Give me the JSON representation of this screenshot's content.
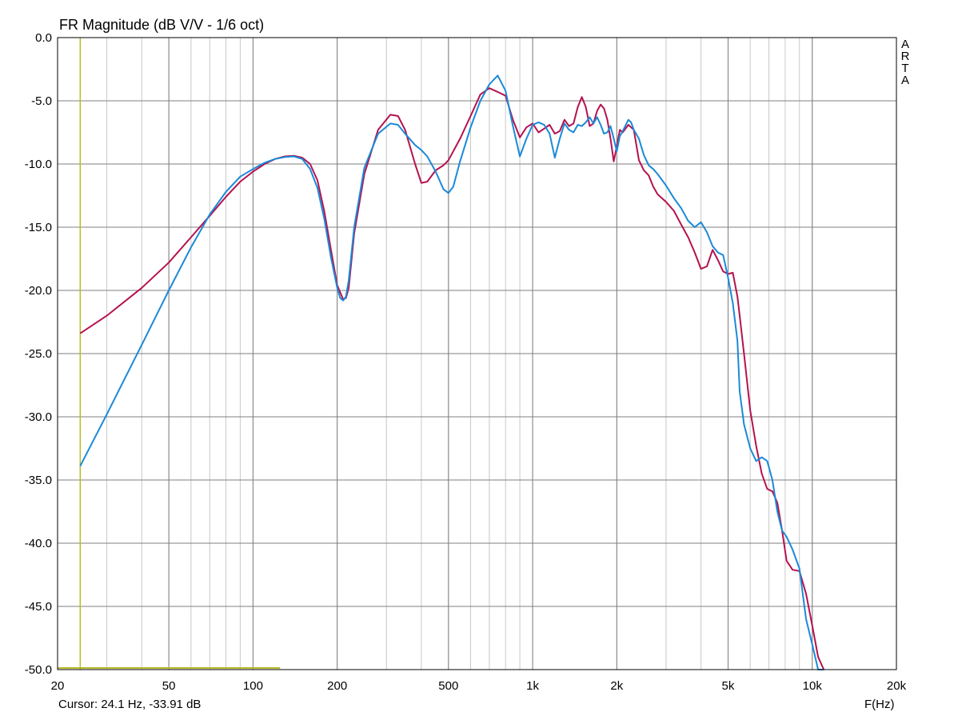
{
  "chart_data": {
    "type": "line",
    "title": "FR Magnitude (dB V/V - 1/6 oct)",
    "xlabel": "F(Hz)",
    "ylabel": "",
    "x_scale": "log",
    "xlim": [
      20,
      20000
    ],
    "ylim": [
      -50,
      0
    ],
    "grid": true,
    "x_ticks": [
      {
        "value": 20,
        "label": "20"
      },
      {
        "value": 50,
        "label": "50"
      },
      {
        "value": 100,
        "label": "100"
      },
      {
        "value": 200,
        "label": "200"
      },
      {
        "value": 500,
        "label": "500"
      },
      {
        "value": 1000,
        "label": "1k"
      },
      {
        "value": 2000,
        "label": "2k"
      },
      {
        "value": 5000,
        "label": "5k"
      },
      {
        "value": 10000,
        "label": "10k"
      },
      {
        "value": 20000,
        "label": "20k"
      }
    ],
    "y_ticks": [
      {
        "value": 0,
        "label": "0.0"
      },
      {
        "value": -5,
        "label": "-5.0"
      },
      {
        "value": -10,
        "label": "-10.0"
      },
      {
        "value": -15,
        "label": "-15.0"
      },
      {
        "value": -20,
        "label": "-20.0"
      },
      {
        "value": -25,
        "label": "-25.0"
      },
      {
        "value": -30,
        "label": "-30.0"
      },
      {
        "value": -35,
        "label": "-35.0"
      },
      {
        "value": -40,
        "label": "-40.0"
      },
      {
        "value": -45,
        "label": "-45.0"
      },
      {
        "value": -50,
        "label": "-50.0"
      }
    ],
    "cursor": {
      "x": 24.1,
      "y": -33.91
    },
    "cursor_bar_end_x": 125,
    "series": [
      {
        "color": "#b5124f",
        "x": [
          24.1,
          30,
          40,
          50,
          60,
          70,
          80,
          90,
          100,
          110,
          120,
          130,
          140,
          150,
          160,
          170,
          180,
          190,
          200,
          210,
          215,
          220,
          230,
          250,
          280,
          310,
          330,
          350,
          380,
          400,
          420,
          450,
          480,
          500,
          550,
          600,
          650,
          700,
          750,
          800,
          850,
          900,
          950,
          1000,
          1050,
          1100,
          1150,
          1200,
          1250,
          1300,
          1350,
          1400,
          1450,
          1500,
          1550,
          1600,
          1650,
          1700,
          1750,
          1800,
          1850,
          1900,
          1950,
          2000,
          2050,
          2100,
          2200,
          2250,
          2300,
          2400,
          2500,
          2600,
          2700,
          2800,
          3000,
          3200,
          3400,
          3600,
          3800,
          4000,
          4200,
          4400,
          4600,
          4800,
          5000,
          5200,
          5400,
          5500,
          5700,
          6000,
          6300,
          6600,
          6900,
          7200,
          7500,
          7800,
          8100,
          8500,
          9000,
          9500,
          10000,
          10500,
          11000
        ],
        "values": [
          -23.4,
          -22.0,
          -19.8,
          -17.8,
          -15.8,
          -14.1,
          -12.6,
          -11.4,
          -10.6,
          -10.0,
          -9.6,
          -9.4,
          -9.35,
          -9.5,
          -10.0,
          -11.3,
          -13.8,
          -16.8,
          -19.6,
          -20.7,
          -20.6,
          -19.8,
          -15.5,
          -10.8,
          -7.3,
          -6.1,
          -6.2,
          -7.3,
          -10.0,
          -11.5,
          -11.4,
          -10.5,
          -10.1,
          -9.7,
          -8.0,
          -6.2,
          -4.5,
          -4.0,
          -4.3,
          -4.6,
          -6.5,
          -7.9,
          -7.1,
          -6.8,
          -7.5,
          -7.2,
          -6.9,
          -7.6,
          -7.4,
          -6.5,
          -7.0,
          -6.8,
          -5.5,
          -4.7,
          -5.5,
          -7.0,
          -6.8,
          -5.8,
          -5.3,
          -5.6,
          -6.5,
          -8.0,
          -9.8,
          -8.6,
          -7.3,
          -7.5,
          -6.9,
          -7.1,
          -7.3,
          -9.7,
          -10.5,
          -10.9,
          -11.8,
          -12.4,
          -13.0,
          -13.7,
          -14.8,
          -15.8,
          -17.0,
          -18.3,
          -18.1,
          -16.8,
          -17.6,
          -18.5,
          -18.7,
          -18.6,
          -20.5,
          -22.0,
          -25.0,
          -29.5,
          -32.3,
          -34.5,
          -35.7,
          -35.9,
          -36.8,
          -39.0,
          -41.4,
          -42.1,
          -42.2,
          -44.0,
          -46.5,
          -49.0,
          -50.0
        ]
      },
      {
        "color": "#1a8ad8",
        "x": [
          24.1,
          30,
          40,
          50,
          60,
          70,
          80,
          90,
          100,
          110,
          120,
          130,
          140,
          150,
          160,
          170,
          180,
          190,
          200,
          205,
          210,
          215,
          220,
          230,
          250,
          280,
          310,
          330,
          350,
          380,
          400,
          420,
          450,
          480,
          500,
          520,
          550,
          600,
          650,
          700,
          750,
          800,
          850,
          900,
          950,
          1000,
          1050,
          1100,
          1150,
          1200,
          1250,
          1300,
          1350,
          1400,
          1450,
          1500,
          1550,
          1600,
          1650,
          1700,
          1750,
          1800,
          1850,
          1900,
          1950,
          2000,
          2050,
          2100,
          2200,
          2250,
          2300,
          2400,
          2500,
          2600,
          2700,
          2800,
          3000,
          3200,
          3400,
          3600,
          3800,
          4000,
          4200,
          4400,
          4600,
          4800,
          5000,
          5200,
          5400,
          5500,
          5700,
          6000,
          6300,
          6600,
          6900,
          7200,
          7500,
          7800,
          8100,
          8500,
          9000,
          9500,
          10000,
          10500,
          11000
        ],
        "values": [
          -33.9,
          -29.8,
          -24.3,
          -20.0,
          -16.6,
          -14.0,
          -12.2,
          -11.0,
          -10.4,
          -9.9,
          -9.6,
          -9.45,
          -9.4,
          -9.6,
          -10.4,
          -11.9,
          -14.4,
          -17.4,
          -19.8,
          -20.6,
          -20.8,
          -20.5,
          -19.2,
          -15.0,
          -10.3,
          -7.6,
          -6.8,
          -6.9,
          -7.6,
          -8.5,
          -8.9,
          -9.4,
          -10.6,
          -12.0,
          -12.3,
          -11.8,
          -9.8,
          -7.1,
          -5.0,
          -3.7,
          -3.0,
          -4.2,
          -7.0,
          -9.4,
          -8.0,
          -6.9,
          -6.7,
          -6.9,
          -7.6,
          -9.5,
          -8.0,
          -6.8,
          -7.3,
          -7.5,
          -6.9,
          -7.0,
          -6.7,
          -6.3,
          -6.8,
          -6.3,
          -6.9,
          -7.6,
          -7.5,
          -7.0,
          -8.0,
          -9.0,
          -7.8,
          -7.4,
          -6.5,
          -6.7,
          -7.3,
          -8.0,
          -9.3,
          -10.1,
          -10.4,
          -10.8,
          -11.7,
          -12.7,
          -13.5,
          -14.5,
          -15.0,
          -14.6,
          -15.4,
          -16.5,
          -17.0,
          -17.2,
          -19.0,
          -21.0,
          -24.0,
          -28.0,
          -30.6,
          -32.5,
          -33.5,
          -33.2,
          -33.5,
          -35.0,
          -37.5,
          -39.0,
          -39.5,
          -40.5,
          -42.0,
          -46.0,
          -48.0,
          -50.0,
          -50.0
        ]
      }
    ]
  },
  "header": {
    "title": "FR Magnitude (dB V/V - 1/6 oct)",
    "cursor_readout": "Cursor: 24.1 Hz, -33.91 dB",
    "xaxis_label": "F(Hz)",
    "brand_letters": [
      "A",
      "R",
      "T",
      "A"
    ]
  },
  "colors": {
    "grid": "#7f7f7f",
    "minor_grid": "#c8c8c8",
    "cursor": "#b9b92a",
    "frame": "#000000"
  }
}
